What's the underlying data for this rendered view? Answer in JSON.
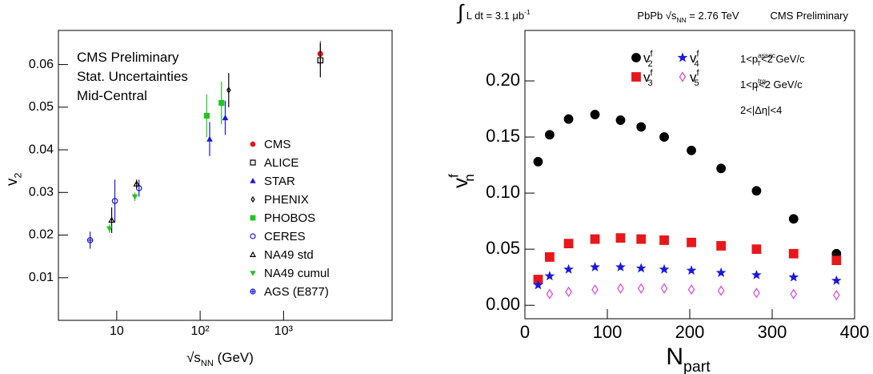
{
  "chart_data": [
    {
      "type": "scatter",
      "xscale": "log",
      "grid": false,
      "y_label": [
        {
          "text": "v"
        },
        {
          "sub": "2"
        }
      ],
      "x_label": [
        {
          "text": "√s"
        },
        {
          "sub": "NN"
        },
        {
          "text": " (GeV)"
        }
      ],
      "annotations": [
        "CMS  Preliminary",
        "Stat. Uncertainties",
        "Mid-Central"
      ],
      "xlim": [
        2,
        20000
      ],
      "ylim": [
        0,
        0.068
      ],
      "xticks": [
        10,
        {
          "value": 100,
          "label": "10²"
        },
        {
          "value": 1000,
          "label": "10³"
        }
      ],
      "yticks": [
        0.01,
        0.02,
        0.03,
        0.04,
        0.05,
        0.06
      ],
      "series": [
        {
          "name": "CMS",
          "color": "#e8171b",
          "marker": "circle",
          "x": [
            2760
          ],
          "values": [
            0.0625
          ],
          "errors": [
            0.003
          ]
        },
        {
          "name": "ALICE",
          "color": "#000000",
          "marker": "open-square",
          "x": [
            2760
          ],
          "values": [
            0.061
          ],
          "errors": [
            0.004
          ]
        },
        {
          "name": "STAR",
          "color": "#1818e0",
          "marker": "triangle",
          "x": [
            130,
            200
          ],
          "values": [
            0.0425,
            0.0475
          ],
          "errors": [
            0.004,
            0.004
          ]
        },
        {
          "name": "PHENIX",
          "color": "#000000",
          "marker": "open-diamond",
          "x": [
            220
          ],
          "values": [
            0.054
          ],
          "errors": [
            0.004
          ]
        },
        {
          "name": "PHOBOS",
          "color": "#22c422",
          "marker": "square",
          "x": [
            120,
            180
          ],
          "values": [
            0.048,
            0.051
          ],
          "errors": [
            0.005,
            0.005
          ]
        },
        {
          "name": "CERES",
          "color": "#1818e0",
          "marker": "open-circle",
          "x": [
            9.5,
            18.5
          ],
          "values": [
            0.028,
            0.031
          ],
          "errors": [
            0.005,
            0.002
          ]
        },
        {
          "name": "NA49 std",
          "color": "#000000",
          "marker": "open-triangle",
          "x": [
            8.7,
            17.3
          ],
          "values": [
            0.0235,
            0.032
          ],
          "errors": [
            0.003,
            0.001
          ]
        },
        {
          "name": "NA49 cumul",
          "color": "#22c422",
          "marker": "triangle-down",
          "x": [
            8.2,
            16.5
          ],
          "values": [
            0.0215,
            0.029
          ],
          "errors": [
            0.001,
            0.001
          ]
        },
        {
          "name": "AGS (E877)",
          "color": "#1818e0",
          "marker": "crossed-circle",
          "x": [
            4.8
          ],
          "values": [
            0.0188
          ],
          "errors": [
            0.002
          ]
        }
      ]
    },
    {
      "type": "scatter",
      "xscale": "linear",
      "grid": false,
      "y_label": [
        {
          "text": "v"
        },
        {
          "sup": "f",
          "sub": "n"
        }
      ],
      "x_label": [
        {
          "text": "N"
        },
        {
          "sub": "part"
        }
      ],
      "header": [
        [
          {
            "text": "∫"
          },
          {
            "text": " L dt = 3.1 μb"
          },
          {
            "sup": "-1"
          }
        ],
        [
          {
            "text": "PbPb √s"
          },
          {
            "sub": "NN"
          },
          {
            "text": " = 2.76 TeV"
          }
        ],
        [
          {
            "text": "CMS Preliminary"
          }
        ]
      ],
      "annotations": [
        [
          {
            "text": "1<p"
          },
          {
            "sup": "assoc",
            "sub": "T"
          },
          {
            "text": "<2 GeV/c"
          }
        ],
        [
          {
            "text": "1<p"
          },
          {
            "sup": "trg",
            "sub": "T"
          },
          {
            "text": "<2 GeV/c"
          }
        ],
        [
          {
            "text": "2<|Δη|<4"
          }
        ]
      ],
      "xlim": [
        0,
        400
      ],
      "ylim": [
        -0.012,
        0.245
      ],
      "xticks": [
        0,
        100,
        200,
        300,
        400
      ],
      "yticks": [
        {
          "value": 0,
          "label": "0.00"
        },
        0.05,
        {
          "value": 0.1,
          "label": "0.10"
        },
        0.15,
        {
          "value": 0.2,
          "label": "0.20"
        }
      ],
      "x": [
        16,
        30,
        53,
        85,
        116,
        141,
        169,
        202,
        238,
        281,
        326,
        378
      ],
      "series": [
        {
          "name": [
            {
              "text": "v"
            },
            {
              "sup": "f",
              "sub": "2"
            }
          ],
          "color": "#000000",
          "marker": "circle",
          "values": [
            0.128,
            0.152,
            0.166,
            0.17,
            0.165,
            0.159,
            0.15,
            0.138,
            0.122,
            0.102,
            0.077,
            0.046
          ]
        },
        {
          "name": [
            {
              "text": "v"
            },
            {
              "sup": "f",
              "sub": "3"
            }
          ],
          "color": "#e8171b",
          "marker": "square",
          "values": [
            0.023,
            0.043,
            0.055,
            0.059,
            0.06,
            0.059,
            0.058,
            0.056,
            0.053,
            0.05,
            0.046,
            0.04
          ]
        },
        {
          "name": [
            {
              "text": "v"
            },
            {
              "sup": "f",
              "sub": "4"
            }
          ],
          "color": "#1818e0",
          "marker": "star",
          "values": [
            0.018,
            0.026,
            0.032,
            0.034,
            0.034,
            0.033,
            0.032,
            0.031,
            0.029,
            0.027,
            0.025,
            0.022
          ]
        },
        {
          "name": [
            {
              "text": "v"
            },
            {
              "sup": "f",
              "sub": "5"
            }
          ],
          "color": "#e040e0",
          "marker": "open-diamond",
          "values": [
            null,
            0.01,
            0.012,
            0.014,
            0.015,
            0.015,
            0.015,
            0.014,
            0.013,
            0.011,
            0.01,
            0.009
          ]
        }
      ]
    }
  ]
}
